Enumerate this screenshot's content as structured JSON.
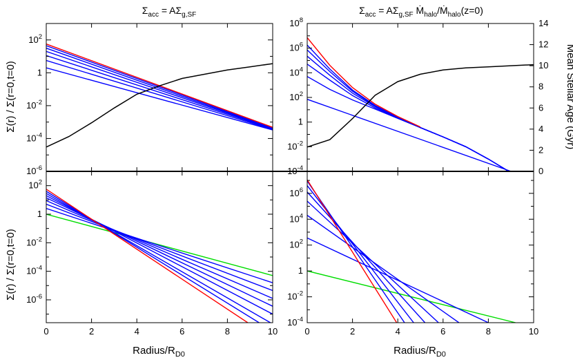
{
  "colors": {
    "blue": "#0000ff",
    "red": "#ff0000",
    "green": "#00dd00",
    "black": "#000000"
  },
  "text": {
    "title_left_sym": "Σ",
    "title_left_sub1": "acc",
    "title_left_mid": " = AΣ",
    "title_left_sub2": "g,SF",
    "title_right_sym": "Σ",
    "title_right_sub1": "acc",
    "title_right_mid": " = AΣ",
    "title_right_sub2": "g,SF",
    "title_right_m1": " Ṁ",
    "title_right_sub3": "halo",
    "title_right_slash": "/Ṁ",
    "title_right_sub4": "halo",
    "title_right_tail": "(z=0)",
    "ylabel_top": "Σ(r) / Σ(r=0,t=0)",
    "ylabel_bottom": "Σ(r) / Σ(r=0,t=0)",
    "ylabel_right": "Mean Stellar Age (Gyr)",
    "xlabel_main": "Radius/R",
    "xlabel_sub": "D0"
  },
  "chart_data": [
    {
      "type": "line",
      "panel": "top-left",
      "title": "Σacc = AΣg,SF",
      "xlabel": "",
      "ylabel": "Σ(r) / Σ(r=0,t=0)",
      "xlim": [
        0,
        10
      ],
      "ylim_log10": [
        -6,
        3
      ],
      "yscale": "log",
      "xticks": [
        0,
        2,
        4,
        6,
        8,
        10
      ],
      "yticks": [
        {
          "base": "10",
          "exp": "2",
          "val": 2
        },
        {
          "base": "1",
          "exp": "",
          "val": 0
        },
        {
          "base": "10",
          "exp": "-2",
          "val": -2
        },
        {
          "base": "10",
          "exp": "-4",
          "val": -4
        },
        {
          "base": "10",
          "exp": "-6",
          "val": -6
        }
      ],
      "surface_density_series": [
        {
          "color": "blue",
          "x": [
            0,
            10
          ],
          "log10_y": [
            0.3,
            -3.48
          ]
        },
        {
          "color": "blue",
          "x": [
            0,
            10
          ],
          "log10_y": [
            0.75,
            -3.45
          ]
        },
        {
          "color": "blue",
          "x": [
            0,
            10
          ],
          "log10_y": [
            1.05,
            -3.42
          ]
        },
        {
          "color": "blue",
          "x": [
            0,
            10
          ],
          "log10_y": [
            1.3,
            -3.4
          ]
        },
        {
          "color": "blue",
          "x": [
            0,
            10
          ],
          "log10_y": [
            1.5,
            -3.38
          ]
        },
        {
          "color": "blue",
          "x": [
            0,
            10
          ],
          "log10_y": [
            1.65,
            -3.35
          ]
        },
        {
          "color": "red",
          "x": [
            0,
            10
          ],
          "log10_y": [
            1.75,
            -3.32
          ]
        }
      ],
      "age_series": {
        "color": "black",
        "x": [
          0,
          1,
          2,
          3,
          4,
          5,
          6,
          7,
          8,
          9,
          10
        ],
        "y_gyr": [
          2.3,
          3.3,
          4.6,
          6.0,
          7.3,
          8.1,
          8.8,
          9.2,
          9.6,
          9.9,
          10.2
        ]
      }
    },
    {
      "type": "line",
      "panel": "top-right",
      "title": "Σacc = AΣg,SF Ṁhalo/Ṁhalo(z=0)",
      "ylabel_right": "Mean Stellar Age (Gyr)",
      "xlim": [
        0,
        10
      ],
      "ylim_log10": [
        -4,
        8
      ],
      "yscale": "log",
      "xticks": [
        0,
        2,
        4,
        6,
        8,
        10
      ],
      "yticks": [
        {
          "base": "10",
          "exp": "8",
          "val": 8
        },
        {
          "base": "10",
          "exp": "6",
          "val": 6
        },
        {
          "base": "10",
          "exp": "4",
          "val": 4
        },
        {
          "base": "10",
          "exp": "2",
          "val": 2
        },
        {
          "base": "1",
          "exp": "",
          "val": 0
        },
        {
          "base": "10",
          "exp": "-2",
          "val": -2
        },
        {
          "base": "10",
          "exp": "-4",
          "val": -4
        }
      ],
      "right_ylim": [
        0,
        14
      ],
      "right_yticks": [
        0,
        2,
        4,
        6,
        8,
        10,
        12,
        14
      ],
      "surface_density_series": [
        {
          "color": "blue",
          "x": [
            0,
            9.0
          ],
          "log10_y": [
            1.85,
            -4.0
          ]
        },
        {
          "color": "blue",
          "x": [
            0,
            1,
            2,
            3,
            4,
            5,
            6,
            7,
            8,
            8.9
          ],
          "log10_y": [
            3.7,
            2.65,
            1.8,
            1.05,
            0.3,
            -0.45,
            -1.2,
            -2.0,
            -3.0,
            -4.0
          ]
        },
        {
          "color": "blue",
          "x": [
            0,
            1,
            2,
            3,
            4,
            5,
            6,
            7,
            8,
            8.9
          ],
          "log10_y": [
            4.7,
            3.4,
            2.15,
            1.15,
            0.35,
            -0.45,
            -1.2,
            -2.0,
            -3.0,
            -4.0
          ]
        },
        {
          "color": "blue",
          "x": [
            0,
            1,
            2,
            3,
            4,
            5,
            6,
            7,
            8,
            8.9
          ],
          "log10_y": [
            5.35,
            3.8,
            2.35,
            1.25,
            0.38,
            -0.45,
            -1.2,
            -2.0,
            -3.0,
            -4.0
          ]
        },
        {
          "color": "blue",
          "x": [
            0,
            1,
            2,
            3,
            4,
            5,
            6,
            7,
            8,
            8.9
          ],
          "log10_y": [
            5.85,
            4.1,
            2.5,
            1.3,
            0.4,
            -0.45,
            -1.2,
            -2.0,
            -3.0,
            -4.0
          ]
        },
        {
          "color": "blue",
          "x": [
            0,
            1,
            2,
            3,
            4,
            5,
            6,
            7,
            8,
            8.9
          ],
          "log10_y": [
            6.25,
            4.3,
            2.6,
            1.35,
            0.4,
            -0.45,
            -1.2,
            -2.0,
            -3.0,
            -4.0
          ]
        },
        {
          "color": "red",
          "x": [
            0,
            1,
            2,
            3,
            4,
            5
          ],
          "log10_y": [
            6.85,
            4.6,
            2.8,
            1.45,
            0.45,
            -0.4
          ]
        }
      ],
      "age_series": {
        "color": "black",
        "x": [
          0,
          1,
          2,
          3,
          4,
          5,
          6,
          7,
          8,
          9,
          10
        ],
        "y_gyr": [
          2.3,
          3.0,
          5.0,
          7.2,
          8.5,
          9.2,
          9.6,
          9.8,
          9.9,
          10.0,
          10.1
        ]
      }
    },
    {
      "type": "line",
      "panel": "bottom-left",
      "xlabel": "Radius/RD0",
      "ylabel": "Σ(r) / Σ(r=0,t=0)",
      "xlim": [
        0,
        10
      ],
      "ylim_log10": [
        -7.6,
        3
      ],
      "yscale": "log",
      "xticks": [
        0,
        2,
        4,
        6,
        8,
        10
      ],
      "yticks": [
        {
          "base": "10",
          "exp": "2",
          "val": 2
        },
        {
          "base": "1",
          "exp": "",
          "val": 0
        },
        {
          "base": "10",
          "exp": "-2",
          "val": -2
        },
        {
          "base": "10",
          "exp": "-4",
          "val": -4
        },
        {
          "base": "10",
          "exp": "-6",
          "val": -6
        }
      ],
      "surface_density_series": [
        {
          "color": "green",
          "x": [
            0,
            10
          ],
          "log10_y": [
            0.0,
            -4.3
          ]
        },
        {
          "color": "blue",
          "x": [
            0,
            10
          ],
          "log10_y": [
            0.4,
            -4.8
          ]
        },
        {
          "color": "blue",
          "x": [
            0,
            10
          ],
          "log10_y": [
            0.7,
            -5.35
          ]
        },
        {
          "color": "blue",
          "x": [
            0,
            10
          ],
          "log10_y": [
            0.95,
            -5.9
          ]
        },
        {
          "color": "blue",
          "x": [
            0,
            10
          ],
          "log10_y": [
            1.15,
            -6.45
          ]
        },
        {
          "color": "blue",
          "x": [
            0,
            10
          ],
          "log10_y": [
            1.3,
            -7.0
          ]
        },
        {
          "color": "blue",
          "x": [
            0,
            9.9
          ],
          "log10_y": [
            1.45,
            -7.6
          ]
        },
        {
          "color": "blue",
          "x": [
            0,
            9.4
          ],
          "log10_y": [
            1.6,
            -7.6
          ]
        },
        {
          "color": "red",
          "x": [
            0,
            8.9
          ],
          "log10_y": [
            1.75,
            -7.6
          ]
        }
      ]
    },
    {
      "type": "line",
      "panel": "bottom-right",
      "xlabel": "Radius/RD0",
      "xlim": [
        0,
        10
      ],
      "ylim_log10": [
        -4,
        7.7
      ],
      "yscale": "log",
      "xticks": [
        0,
        2,
        4,
        6,
        8,
        10
      ],
      "yticks": [
        {
          "base": "10",
          "exp": "6",
          "val": 6
        },
        {
          "base": "10",
          "exp": "4",
          "val": 4
        },
        {
          "base": "10",
          "exp": "2",
          "val": 2
        },
        {
          "base": "1",
          "exp": "",
          "val": 0
        },
        {
          "base": "10",
          "exp": "-2",
          "val": -2
        },
        {
          "base": "10",
          "exp": "-4",
          "val": -4
        }
      ],
      "surface_density_series": [
        {
          "color": "green",
          "x": [
            0,
            9.2
          ],
          "log10_y": [
            0.0,
            -4.0
          ]
        },
        {
          "color": "blue",
          "x": [
            0,
            8.0
          ],
          "log10_y": [
            2.55,
            -4.0
          ]
        },
        {
          "color": "blue",
          "x": [
            0,
            6.7
          ],
          "log10_y": [
            4.3,
            -4.0
          ]
        },
        {
          "color": "blue",
          "x": [
            0,
            5.8
          ],
          "log10_y": [
            5.4,
            -4.0
          ]
        },
        {
          "color": "blue",
          "x": [
            0,
            5.2
          ],
          "log10_y": [
            6.1,
            -4.0
          ]
        },
        {
          "color": "blue",
          "x": [
            0,
            4.7
          ],
          "log10_y": [
            6.6,
            -4.0
          ]
        },
        {
          "color": "blue",
          "x": [
            0,
            4.3
          ],
          "log10_y": [
            6.95,
            -4.0
          ]
        },
        {
          "color": "red",
          "x": [
            0,
            3.95
          ],
          "log10_y": [
            7.05,
            -4.0
          ]
        }
      ]
    }
  ]
}
